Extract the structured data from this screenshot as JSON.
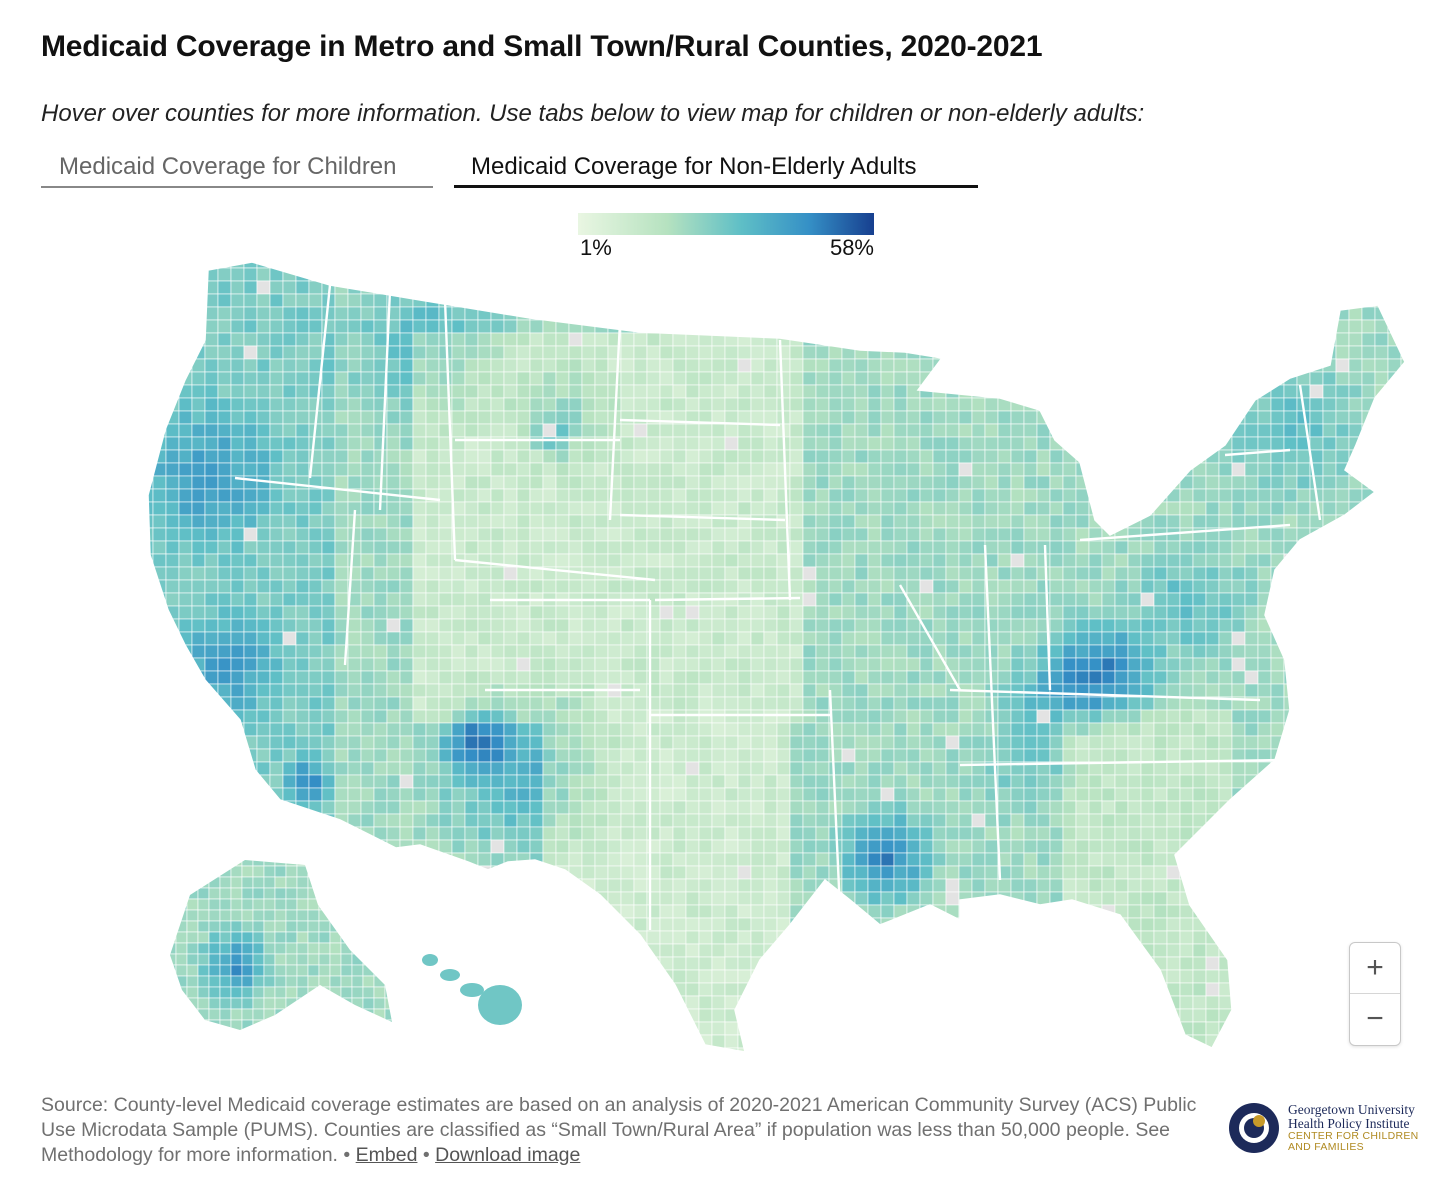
{
  "title": "Medicaid Coverage in Metro and Small Town/Rural Counties, 2020-2021",
  "subtitle": "Hover over counties for more information. Use tabs below to view map for children or non-elderly adults:",
  "tabs": [
    {
      "label": "Medicaid Coverage for Children",
      "active": false
    },
    {
      "label": "Medicaid Coverage for Non-Elderly Adults",
      "active": true
    }
  ],
  "legend": {
    "min_label": "1%",
    "max_label": "58%",
    "min_value": 1,
    "max_value": 58,
    "color_scale": [
      "#e9f6e2",
      "#b6e2c0",
      "#5fbfc6",
      "#3590c6",
      "#173f8f"
    ]
  },
  "map": {
    "type": "choropleth",
    "unit": "Medicaid coverage rate for non-elderly adults (%)",
    "region_scale": "US counties",
    "no_data_color": "#e3e3e3",
    "border_color": "#ffffff"
  },
  "zoom": {
    "in_symbol": "+",
    "out_symbol": "−"
  },
  "source": {
    "text": "Source: County-level Medicaid coverage estimates are based on an analysis of 2020-2021 American Community Survey (ACS) Public Use Microdata Sample (PUMS). Counties are classified as “Small Town/Rural Area” if population was less than 50,000 people. See Methodology for more information. • ",
    "embed_label": "Embed",
    "separator": " • ",
    "download_label": "Download image"
  },
  "logo": {
    "line1": "Georgetown University",
    "line2": "Health Policy Institute",
    "line3": "CENTER FOR CHILDREN",
    "line4": "AND FAMILIES",
    "colors": {
      "navy": "#1d2a5a",
      "gold": "#c79a2a"
    }
  }
}
